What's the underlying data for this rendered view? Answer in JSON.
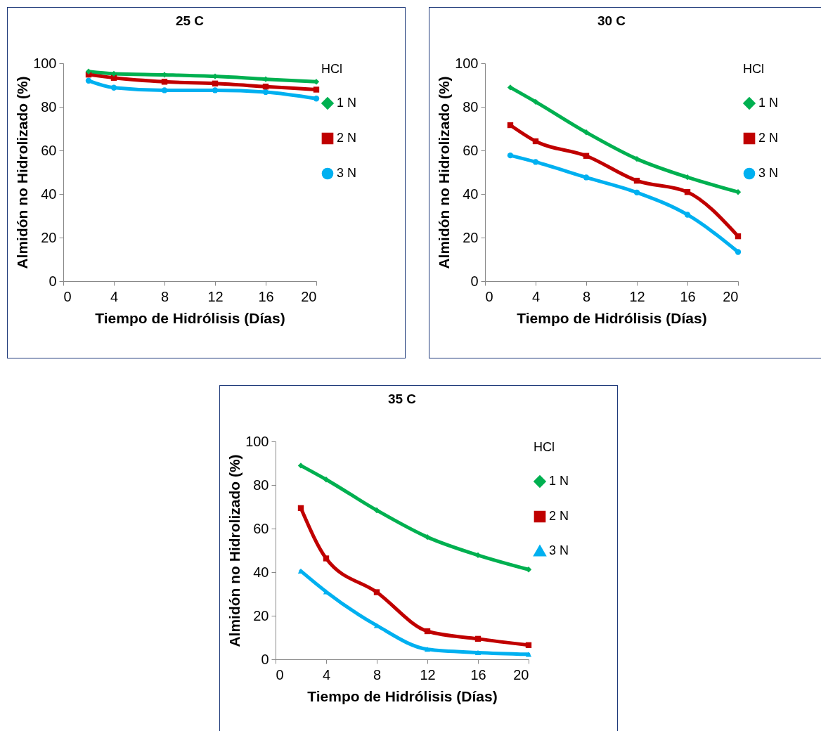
{
  "chart_data": [
    {
      "type": "line",
      "title": "25   C",
      "xlabel": "Tiempo de Hidrólisis (Días)",
      "ylabel": "Almidón no Hidrolizado (%)",
      "legend": "right",
      "legend_title": "HCl",
      "grid": false,
      "xlim": [
        0,
        20
      ],
      "xticks": [
        0,
        4,
        8,
        12,
        16,
        20
      ],
      "ylim": [
        0,
        100
      ],
      "yticks": [
        0,
        20,
        40,
        60,
        80,
        100
      ],
      "x": [
        2,
        4,
        8,
        12,
        16,
        20
      ],
      "series": [
        {
          "name": "1 N",
          "color": "#00b050",
          "marker": "diamond",
          "values": [
            96.2,
            95.2,
            94.7,
            94,
            92.7,
            91.5
          ]
        },
        {
          "name": "2 N",
          "color": "#c00000",
          "marker": "square",
          "values": [
            94.8,
            93.3,
            91.5,
            90.7,
            89.3,
            87.9
          ]
        },
        {
          "name": "3 N",
          "color": "#00b0f0",
          "marker": "circle",
          "values": [
            92,
            88.8,
            87.6,
            87.6,
            86.8,
            83.8
          ]
        }
      ]
    },
    {
      "type": "line",
      "title": "30   C",
      "xlabel": "Tiempo de Hidrólisis (Días)",
      "ylabel": "Almidón no Hidrolizado (%)",
      "legend": "right",
      "legend_title": "HCl",
      "grid": false,
      "xlim": [
        0,
        20
      ],
      "xticks": [
        0,
        4,
        8,
        12,
        16,
        20
      ],
      "ylim": [
        0,
        100
      ],
      "yticks": [
        0,
        20,
        40,
        60,
        80,
        100
      ],
      "x": [
        2,
        4,
        8,
        12,
        16,
        20
      ],
      "series": [
        {
          "name": "1 N",
          "color": "#00b050",
          "marker": "diamond",
          "values": [
            88.9,
            82.3,
            68.3,
            56.1,
            47.7,
            40.9
          ]
        },
        {
          "name": "2 N",
          "color": "#c00000",
          "marker": "square",
          "values": [
            71.6,
            64.2,
            57.5,
            46.1,
            40.9,
            20.6
          ]
        },
        {
          "name": "3 N",
          "color": "#00b0f0",
          "marker": "circle",
          "values": [
            57.7,
            54.7,
            47.6,
            40.7,
            30.5,
            13.4
          ]
        }
      ]
    },
    {
      "type": "line",
      "title": "35   C",
      "xlabel": "Tiempo de Hidrólisis (Días)",
      "ylabel": "Almidón no Hidrolizado (%)",
      "legend": "right",
      "legend_title": "HCl",
      "grid": false,
      "xlim": [
        0,
        20
      ],
      "xticks": [
        0,
        4,
        8,
        12,
        16,
        20
      ],
      "ylim": [
        0,
        100
      ],
      "yticks": [
        0,
        20,
        40,
        60,
        80,
        100
      ],
      "x": [
        2,
        4,
        8,
        12,
        16,
        20
      ],
      "series": [
        {
          "name": "1 N",
          "color": "#00b050",
          "marker": "diamond",
          "values": [
            88.9,
            82.5,
            68.4,
            56.1,
            47.8,
            41.2
          ]
        },
        {
          "name": "2 N",
          "color": "#c00000",
          "marker": "square",
          "values": [
            69.4,
            46.3,
            30.8,
            12.9,
            9.4,
            6.5
          ]
        },
        {
          "name": "3 N",
          "color": "#00b0f0",
          "marker": "triangle",
          "values": [
            40.5,
            31,
            15.5,
            4.6,
            3.1,
            2.3
          ]
        }
      ]
    }
  ]
}
